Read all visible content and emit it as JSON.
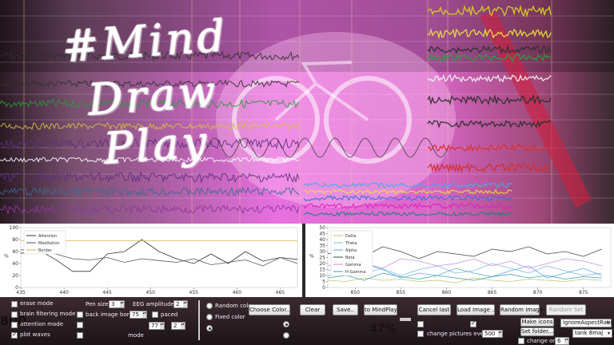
{
  "title_words": [
    "#Mind",
    "Draw",
    "Play"
  ],
  "left_chart": {
    "legend": [
      "Attention",
      "Meditation",
      "Border"
    ],
    "colors": [
      "#333333",
      "#555555",
      "#d4b24a"
    ],
    "x_ticks": [
      "435",
      "440",
      "445",
      "450",
      "455",
      "460",
      "465"
    ],
    "y_ticks": [
      "0",
      "20",
      "40",
      "60",
      "80",
      "100"
    ],
    "ylabel": "%"
  },
  "right_chart": {
    "legend": [
      "Delta",
      "Theta",
      "Alpha",
      "Beta",
      "Gamma",
      "H-Gamma"
    ],
    "colors": [
      "#c8c070",
      "#7fb8d8",
      "#5aa8e0",
      "#444444",
      "#d08ae0",
      "#3a9fb0"
    ],
    "x_ticks": [
      "850",
      "855",
      "860",
      "865",
      "870",
      "875"
    ],
    "y_ticks": [
      "0",
      "5",
      "10",
      "15",
      "20",
      "25",
      "30",
      "35",
      "40",
      "45",
      "50"
    ],
    "ylabel": "%"
  },
  "chart_data": [
    {
      "type": "line",
      "x": [
        435,
        437,
        439,
        441,
        443,
        445,
        447,
        449,
        451,
        453,
        455,
        457,
        459,
        461,
        463,
        465,
        467
      ],
      "series": [
        {
          "name": "Attention",
          "values": [
            57,
            63,
            47,
            27,
            27,
            56,
            60,
            80,
            60,
            48,
            40,
            56,
            40,
            60,
            44,
            50,
            47
          ]
        },
        {
          "name": "Meditation",
          "values": [
            63,
            63,
            56,
            48,
            46,
            50,
            42,
            48,
            45,
            42,
            48,
            38,
            42,
            46,
            36,
            50,
            40
          ]
        },
        {
          "name": "Border",
          "values": [
            78,
            78,
            78,
            78,
            78,
            78,
            78,
            78,
            78,
            78,
            78,
            78,
            78,
            78,
            78,
            78,
            78
          ]
        }
      ],
      "xlim": [
        435,
        467
      ],
      "ylim": [
        0,
        100
      ],
      "ylabel": "%"
    },
    {
      "type": "line",
      "x": [
        847,
        849,
        851,
        853,
        855,
        857,
        859,
        861,
        863,
        865,
        867,
        869,
        871,
        873,
        875,
        877
      ],
      "series": [
        {
          "name": "Delta",
          "values": [
            6,
            5,
            8,
            6,
            7,
            5,
            6,
            4,
            8,
            6,
            5,
            7,
            6,
            5,
            7,
            6
          ]
        },
        {
          "name": "Theta",
          "values": [
            14,
            18,
            12,
            16,
            10,
            15,
            18,
            12,
            14,
            20,
            16,
            12,
            18,
            14,
            10,
            12
          ]
        },
        {
          "name": "Alpha",
          "values": [
            10,
            12,
            20,
            15,
            8,
            12,
            10,
            16,
            12,
            9,
            14,
            18,
            8,
            12,
            16,
            10
          ]
        },
        {
          "name": "Beta",
          "values": [
            28,
            32,
            26,
            34,
            30,
            24,
            30,
            28,
            26,
            32,
            30,
            34,
            28,
            30,
            26,
            32
          ]
        },
        {
          "name": "Gamma",
          "values": [
            18,
            22,
            20,
            16,
            24,
            22,
            18,
            20,
            24,
            18,
            22,
            16,
            20,
            24,
            22,
            18
          ]
        },
        {
          "name": "H-Gamma",
          "values": [
            8,
            10,
            6,
            12,
            9,
            7,
            10,
            8,
            6,
            9,
            11,
            8,
            10,
            7,
            9,
            8
          ]
        }
      ],
      "xlim": [
        847,
        878
      ],
      "ylim": [
        0,
        50
      ],
      "ylabel": "%"
    }
  ],
  "controls": {
    "checkboxes": [
      {
        "label": "erase mode",
        "checked": false
      },
      {
        "label": "brain filtering mode",
        "checked": false
      },
      {
        "label": "attention mode",
        "checked": false
      },
      {
        "label": "plot waves",
        "checked": true
      }
    ],
    "pen_size_label": "Pen size",
    "pen_size_value": "3",
    "eeg_amplitude_label": "EEG amplitude",
    "eeg_amplitude_value": "2",
    "back_image_border_label": "back image border",
    "back_image_border_value": "75",
    "paced_label": "paced",
    "spin_77": "77",
    "spin_2": "2",
    "mode_label": "mode",
    "radios": [
      {
        "label": "Random color",
        "on": false
      },
      {
        "label": "Fixed color",
        "on": false
      }
    ],
    "choose_color": "Choose Color...",
    "clear": "Clear",
    "save": "Save..",
    "to_mindplay": "to MindPlay",
    "cancel_last": "Cancel last",
    "load_image": "Load Image ..",
    "random_image": "Random Image",
    "random_set": "Random Set",
    "change_pictures_label": "change pictures every",
    "change_pictures_value": "500",
    "make_icons": "Make icons",
    "set_folder": "Set folder...",
    "aspect_select": "IgnoreAspectRatio",
    "change_only_label": "change only",
    "change_only_value": "6",
    "tank_select": "tank 8maj",
    "percent_readout": "47%"
  }
}
